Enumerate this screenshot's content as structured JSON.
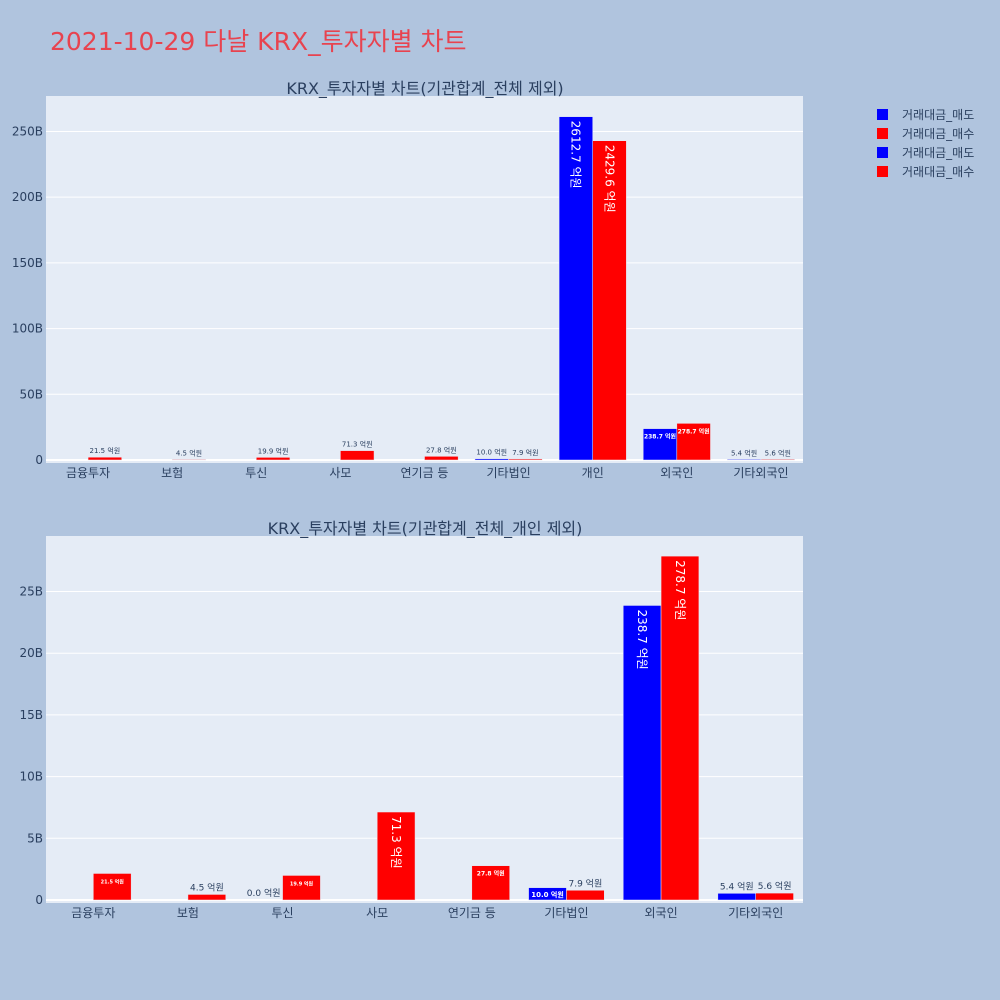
{
  "page": {
    "title": "2021-10-29 다날 KRX_투자자별 차트"
  },
  "legend": {
    "placement": "top-right",
    "items": [
      {
        "label": "거래대금_매도",
        "color": "#0000ff"
      },
      {
        "label": "거래대금_매수",
        "color": "#ff0000"
      },
      {
        "label": "거래대금_매도",
        "color": "#0000ff"
      },
      {
        "label": "거래대금_매수",
        "color": "#ff0000"
      }
    ]
  },
  "chart_data": [
    {
      "type": "bar",
      "title": "KRX_투자자별 차트(기관합계_전체 제외)",
      "xlabel": "",
      "ylabel": "",
      "grid": true,
      "ylim": [
        0,
        277
      ],
      "yticks": [
        0,
        50,
        100,
        150,
        200,
        250
      ],
      "ytick_labels": [
        "0",
        "50B",
        "100B",
        "150B",
        "200B",
        "250B"
      ],
      "categories": [
        "금융투자",
        "보험",
        "투신",
        "사모",
        "연기금 등",
        "기타법인",
        "개인",
        "외국인",
        "기타외국인"
      ],
      "series": [
        {
          "name": "거래대금_매도",
          "color": "#0000ff",
          "values": [
            0,
            0,
            0,
            0,
            0,
            1.0,
            261.27,
            23.87,
            0.54
          ],
          "labels": [
            "",
            "",
            "",
            "",
            "",
            "10.0 억원",
            "2612.7 억원",
            "238.7 억원",
            "5.4 억원"
          ]
        },
        {
          "name": "거래대금_매수",
          "color": "#ff0000",
          "values": [
            2.15,
            0.45,
            1.99,
            7.13,
            2.78,
            0.79,
            242.96,
            27.87,
            0.56
          ],
          "labels": [
            "21.5 억원",
            "4.5 억원",
            "19.9 억원",
            "71.3 억원",
            "27.8 억원",
            "7.9 억원",
            "2429.6 억원",
            "278.7 억원",
            "5.6 억원"
          ]
        }
      ]
    },
    {
      "type": "bar",
      "title": "KRX_투자자별 차트(기관합계_전체_개인 제외)",
      "xlabel": "",
      "ylabel": "",
      "grid": true,
      "ylim": [
        0,
        29.5
      ],
      "yticks": [
        0,
        5,
        10,
        15,
        20,
        25
      ],
      "ytick_labels": [
        "0",
        "5B",
        "10B",
        "15B",
        "20B",
        "25B"
      ],
      "categories": [
        "금융투자",
        "보험",
        "투신",
        "사모",
        "연기금 등",
        "기타법인",
        "외국인",
        "기타외국인"
      ],
      "series": [
        {
          "name": "거래대금_매도",
          "color": "#0000ff",
          "values": [
            0,
            0,
            0,
            0,
            0,
            1.0,
            23.87,
            0.54
          ],
          "labels": [
            "",
            "",
            "0.0 억원",
            "",
            "",
            "10.0 억원",
            "238.7 억원",
            "5.4 억원"
          ]
        },
        {
          "name": "거래대금_매수",
          "color": "#ff0000",
          "values": [
            2.15,
            0.45,
            1.99,
            7.13,
            2.78,
            0.79,
            27.87,
            0.56
          ],
          "labels": [
            "21.5 억원",
            "4.5 억원",
            "19.9 억원",
            "71.3 억원",
            "27.8 억원",
            "7.9 억원",
            "278.7 억원",
            "5.6 억원"
          ]
        }
      ]
    }
  ]
}
